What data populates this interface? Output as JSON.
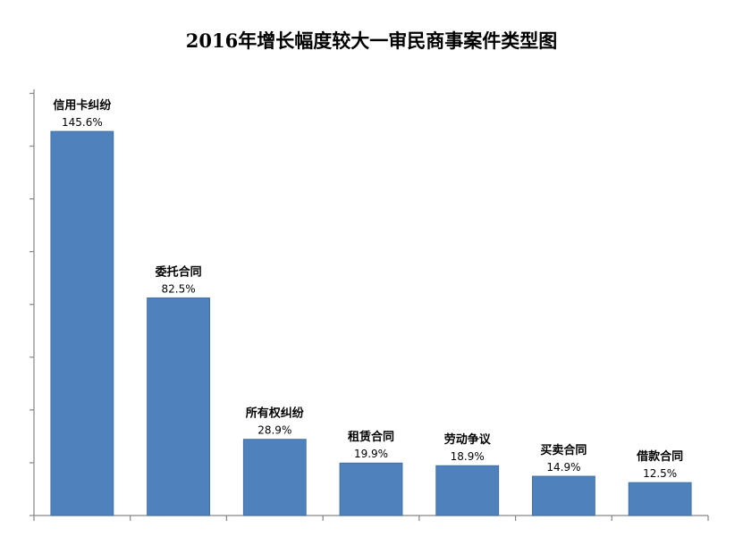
{
  "chart_data": {
    "type": "bar",
    "title": "2016年增长幅度较大一审民商事案件类型图",
    "categories": [
      "信用卡纠纷",
      "委托合同",
      "所有权纠纷",
      "租赁合同",
      "劳动争议",
      "买卖合同",
      "借款合同"
    ],
    "values": [
      145.6,
      82.5,
      28.9,
      19.9,
      18.9,
      14.9,
      12.5
    ],
    "value_labels": [
      "145.6%",
      "82.5%",
      "28.9%",
      "19.9%",
      "18.9%",
      "14.9%",
      "12.5%"
    ],
    "xlabel": "",
    "ylabel": "",
    "ylim": [
      0,
      160
    ],
    "grid": false,
    "legend": "none",
    "bar_color": "#4f81bd",
    "bar_border_color": "#3a6a9e",
    "axis_color": "#868686"
  }
}
